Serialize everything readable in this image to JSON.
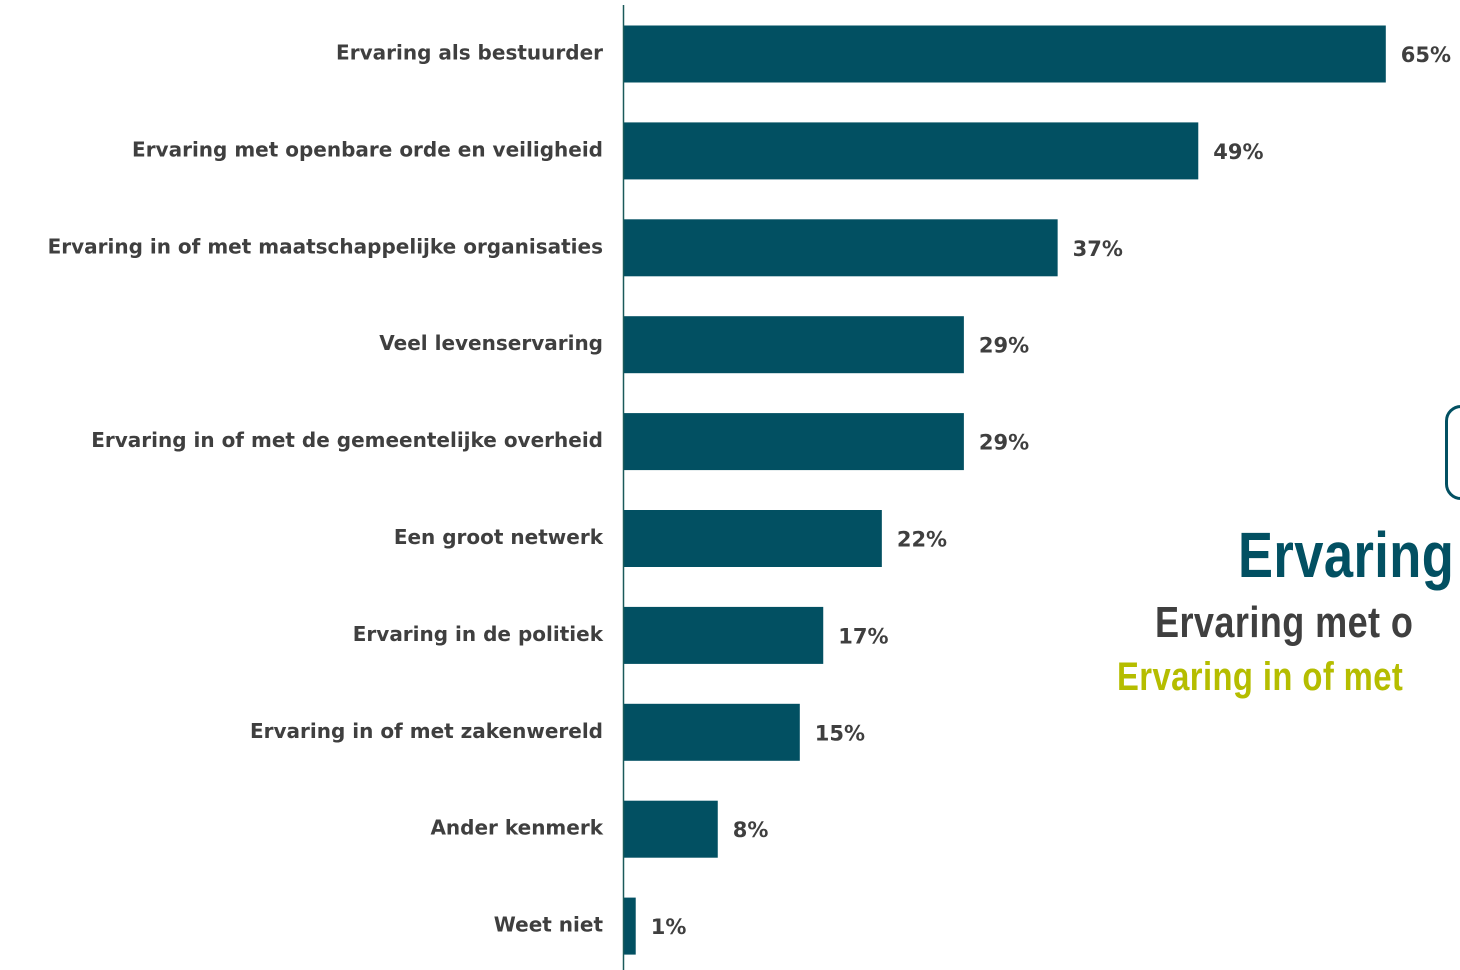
{
  "chart_data": {
    "type": "bar",
    "orientation": "horizontal",
    "categories": [
      "Ervaring als bestuurder",
      "Ervaring met openbare orde en veiligheid",
      "Ervaring in of met maatschappelijke organisaties",
      "Veel levenservaring",
      "Ervaring in of met de gemeentelijke overheid",
      "Een groot netwerk",
      "Ervaring in de politiek",
      "Ervaring in of met zakenwereld",
      "Ander kenmerk",
      "Weet niet"
    ],
    "values": [
      65,
      49,
      37,
      29,
      29,
      22,
      17,
      15,
      8,
      1
    ],
    "value_labels": [
      "65%",
      "49%",
      "37%",
      "29%",
      "29%",
      "22%",
      "17%",
      "15%",
      "8%",
      "1%"
    ],
    "title": "",
    "xlabel": "",
    "ylabel": "",
    "bar_color": "#025062",
    "label_color": "#3f3f3f",
    "grid": false,
    "legend": "none"
  },
  "overlay": {
    "line1": "Ervaring",
    "line2": "Ervaring met o",
    "line3": "Ervaring in of met",
    "line1_color": "#025062",
    "line2_color": "#3f3f3f",
    "line3_color": "#b5bd00",
    "frame_color": "#025062"
  }
}
